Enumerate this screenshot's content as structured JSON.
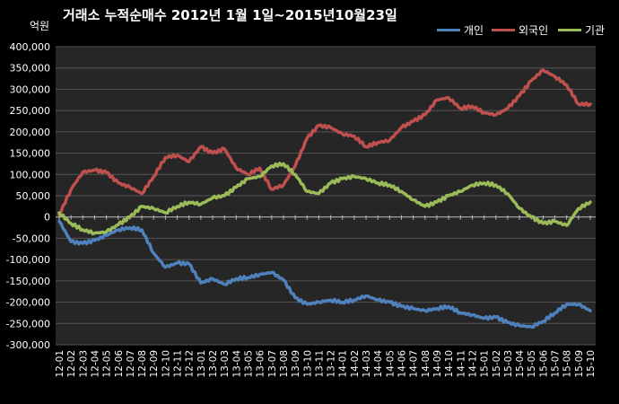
{
  "chart_data": {
    "type": "line",
    "title": "거래소  누적순매수 2012년 1월 1일~2015년10월23일",
    "unit_label": "억원",
    "ylim": [
      -300000,
      400000
    ],
    "ytick_values": [
      400000,
      350000,
      300000,
      250000,
      200000,
      150000,
      100000,
      50000,
      0,
      -50000,
      -100000,
      -150000,
      -200000,
      -250000,
      -300000
    ],
    "ytick_labels": [
      "400,000",
      "350,000",
      "300,000",
      "250,000",
      "200,000",
      "150,000",
      "100,000",
      "50,000",
      "0",
      "-50,000",
      "-100,000",
      "-150,000",
      "-200,000",
      "-250,000",
      "-300,000"
    ],
    "categories": [
      "12-01",
      "12-02",
      "12-03",
      "12-04",
      "12-05",
      "12-06",
      "12-07",
      "12-08",
      "12-09",
      "12-10",
      "12-11",
      "12-12",
      "13-01",
      "13-02",
      "13-03",
      "13-04",
      "13-05",
      "13-06",
      "13-07",
      "13-08",
      "13-09",
      "13-10",
      "13-11",
      "13-12",
      "14-01",
      "14-02",
      "14-03",
      "14-04",
      "14-05",
      "14-06",
      "14-07",
      "14-08",
      "14-09",
      "14-10",
      "14-11",
      "14-12",
      "15-01",
      "15-02",
      "15-03",
      "15-04",
      "15-05",
      "15-06",
      "15-07",
      "15-08",
      "15-09",
      "15-10"
    ],
    "grid": true,
    "legend_position": "top-right",
    "series": [
      {
        "name": "개인",
        "color": "#4f81bd",
        "values": [
          -10000,
          -58000,
          -62000,
          -55000,
          -43000,
          -30000,
          -25000,
          -30000,
          -85000,
          -118000,
          -108000,
          -110000,
          -155000,
          -145000,
          -158000,
          -145000,
          -142000,
          -135000,
          -130000,
          -148000,
          -190000,
          -205000,
          -200000,
          -195000,
          -200000,
          -195000,
          -185000,
          -195000,
          -200000,
          -210000,
          -215000,
          -220000,
          -215000,
          -210000,
          -225000,
          -230000,
          -238000,
          -235000,
          -248000,
          -255000,
          -258000,
          -245000,
          -225000,
          -205000,
          -205000,
          -220000
        ]
      },
      {
        "name": "외국인",
        "color": "#c0504d",
        "values": [
          5000,
          65000,
          105000,
          110000,
          105000,
          80000,
          70000,
          55000,
          95000,
          140000,
          145000,
          130000,
          165000,
          150000,
          160000,
          115000,
          100000,
          115000,
          65000,
          75000,
          120000,
          185000,
          215000,
          210000,
          195000,
          190000,
          165000,
          175000,
          180000,
          210000,
          225000,
          240000,
          275000,
          280000,
          255000,
          260000,
          245000,
          240000,
          255000,
          285000,
          320000,
          345000,
          330000,
          310000,
          265000,
          265000
        ]
      },
      {
        "name": "기관",
        "color": "#9bbb59",
        "values": [
          10000,
          -15000,
          -30000,
          -38000,
          -35000,
          -18000,
          0,
          25000,
          20000,
          10000,
          25000,
          35000,
          30000,
          45000,
          50000,
          70000,
          90000,
          95000,
          120000,
          125000,
          100000,
          60000,
          55000,
          80000,
          90000,
          95000,
          90000,
          80000,
          75000,
          60000,
          40000,
          25000,
          35000,
          50000,
          60000,
          75000,
          80000,
          75000,
          55000,
          20000,
          0,
          -15000,
          -10000,
          -20000,
          20000,
          35000
        ]
      }
    ]
  }
}
